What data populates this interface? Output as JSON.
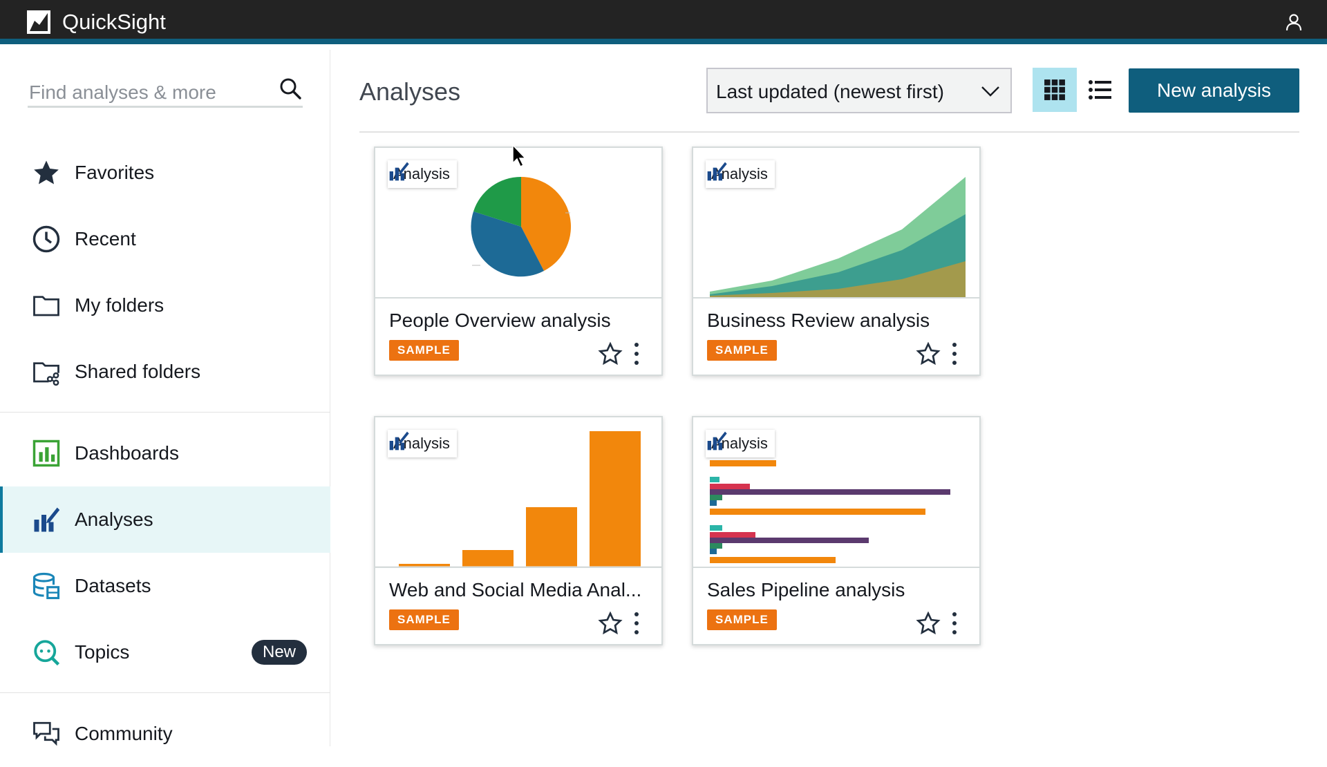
{
  "app": {
    "title": "QuickSight"
  },
  "sidebar": {
    "search_placeholder": "Find analyses & more",
    "items": [
      {
        "label": "Favorites",
        "icon": "star-icon"
      },
      {
        "label": "Recent",
        "icon": "clock-icon"
      },
      {
        "label": "My folders",
        "icon": "folder-icon"
      },
      {
        "label": "Shared folders",
        "icon": "shared-folder-icon"
      },
      {
        "label": "Dashboards",
        "icon": "dashboard-icon"
      },
      {
        "label": "Analyses",
        "icon": "analysis-icon",
        "active": true
      },
      {
        "label": "Datasets",
        "icon": "dataset-icon"
      },
      {
        "label": "Topics",
        "icon": "topics-icon",
        "badge": "New"
      },
      {
        "label": "Community",
        "icon": "community-icon"
      }
    ]
  },
  "main": {
    "title": "Analyses",
    "sort": {
      "selected": "Last updated (newest first)"
    },
    "view": {
      "active": "grid"
    },
    "new_button": "New analysis",
    "cards": [
      {
        "title": "People Overview analysis",
        "tag": "Analysis",
        "badge": "SAMPLE",
        "thumbnail": "pie"
      },
      {
        "title": "Business Review analysis",
        "tag": "Analysis",
        "badge": "SAMPLE",
        "thumbnail": "area"
      },
      {
        "title": "Web and Social Media Anal...",
        "tag": "Analysis",
        "badge": "SAMPLE",
        "thumbnail": "bar"
      },
      {
        "title": "Sales Pipeline analysis",
        "tag": "Analysis",
        "badge": "SAMPLE",
        "thumbnail": "hbar"
      }
    ]
  },
  "colors": {
    "accent": "#0f5e7d",
    "active_bg": "#e7f6f7",
    "sample": "#ec7211",
    "topbar": "#232323"
  }
}
